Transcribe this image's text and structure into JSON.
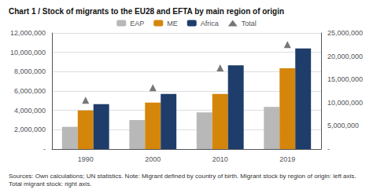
{
  "chart_data": {
    "type": "bar",
    "title": "Chart 1 / Stock of migrants to the EU28 and EFTA by main region of origin",
    "annotations": [
      "Sources: Own calculations; UN statistics. Note: Migrant defined by country of birth. Migrant stock by region of origin: left axis.\nTotal migrant stock: right axis."
    ],
    "categories": [
      "1990",
      "2000",
      "2010",
      "2019"
    ],
    "series": [
      {
        "name": "EAP",
        "type": "bar",
        "color": "#b8b8b8",
        "values": [
          2300000,
          3000000,
          3800000,
          4350000
        ]
      },
      {
        "name": "ME",
        "type": "bar",
        "color": "#d4860a",
        "values": [
          4000000,
          4800000,
          5700000,
          8350000
        ]
      },
      {
        "name": "Africa",
        "type": "bar",
        "color": "#1f3d6b",
        "values": [
          4650000,
          5700000,
          8650000,
          10400000
        ]
      },
      {
        "name": "Total",
        "type": "scatter",
        "marker": "triangle",
        "axis": "y2",
        "color": "#555555",
        "values": [
          10500000,
          13200000,
          17500000,
          22500000
        ]
      }
    ],
    "ylim": [
      0,
      12000000
    ],
    "yticks": [
      {
        "value": 0,
        "label": "-"
      },
      {
        "value": 2000000,
        "label": "2,000,000"
      },
      {
        "value": 4000000,
        "label": "4,000,000"
      },
      {
        "value": 6000000,
        "label": "6,000,000"
      },
      {
        "value": 8000000,
        "label": "8,000,000"
      },
      {
        "value": 10000000,
        "label": "10,000,000"
      },
      {
        "value": 12000000,
        "label": "12,000,000"
      }
    ],
    "y2lim": [
      0,
      25000000
    ],
    "y2ticks": [
      {
        "value": 0,
        "label": "-"
      },
      {
        "value": 5000000,
        "label": "5,000,000"
      },
      {
        "value": 10000000,
        "label": "10,000,000"
      },
      {
        "value": 15000000,
        "label": "15,000,000"
      },
      {
        "value": 20000000,
        "label": "20,000,000"
      },
      {
        "value": 25000000,
        "label": "25,000,000"
      }
    ],
    "grid": true,
    "legend": "top"
  }
}
